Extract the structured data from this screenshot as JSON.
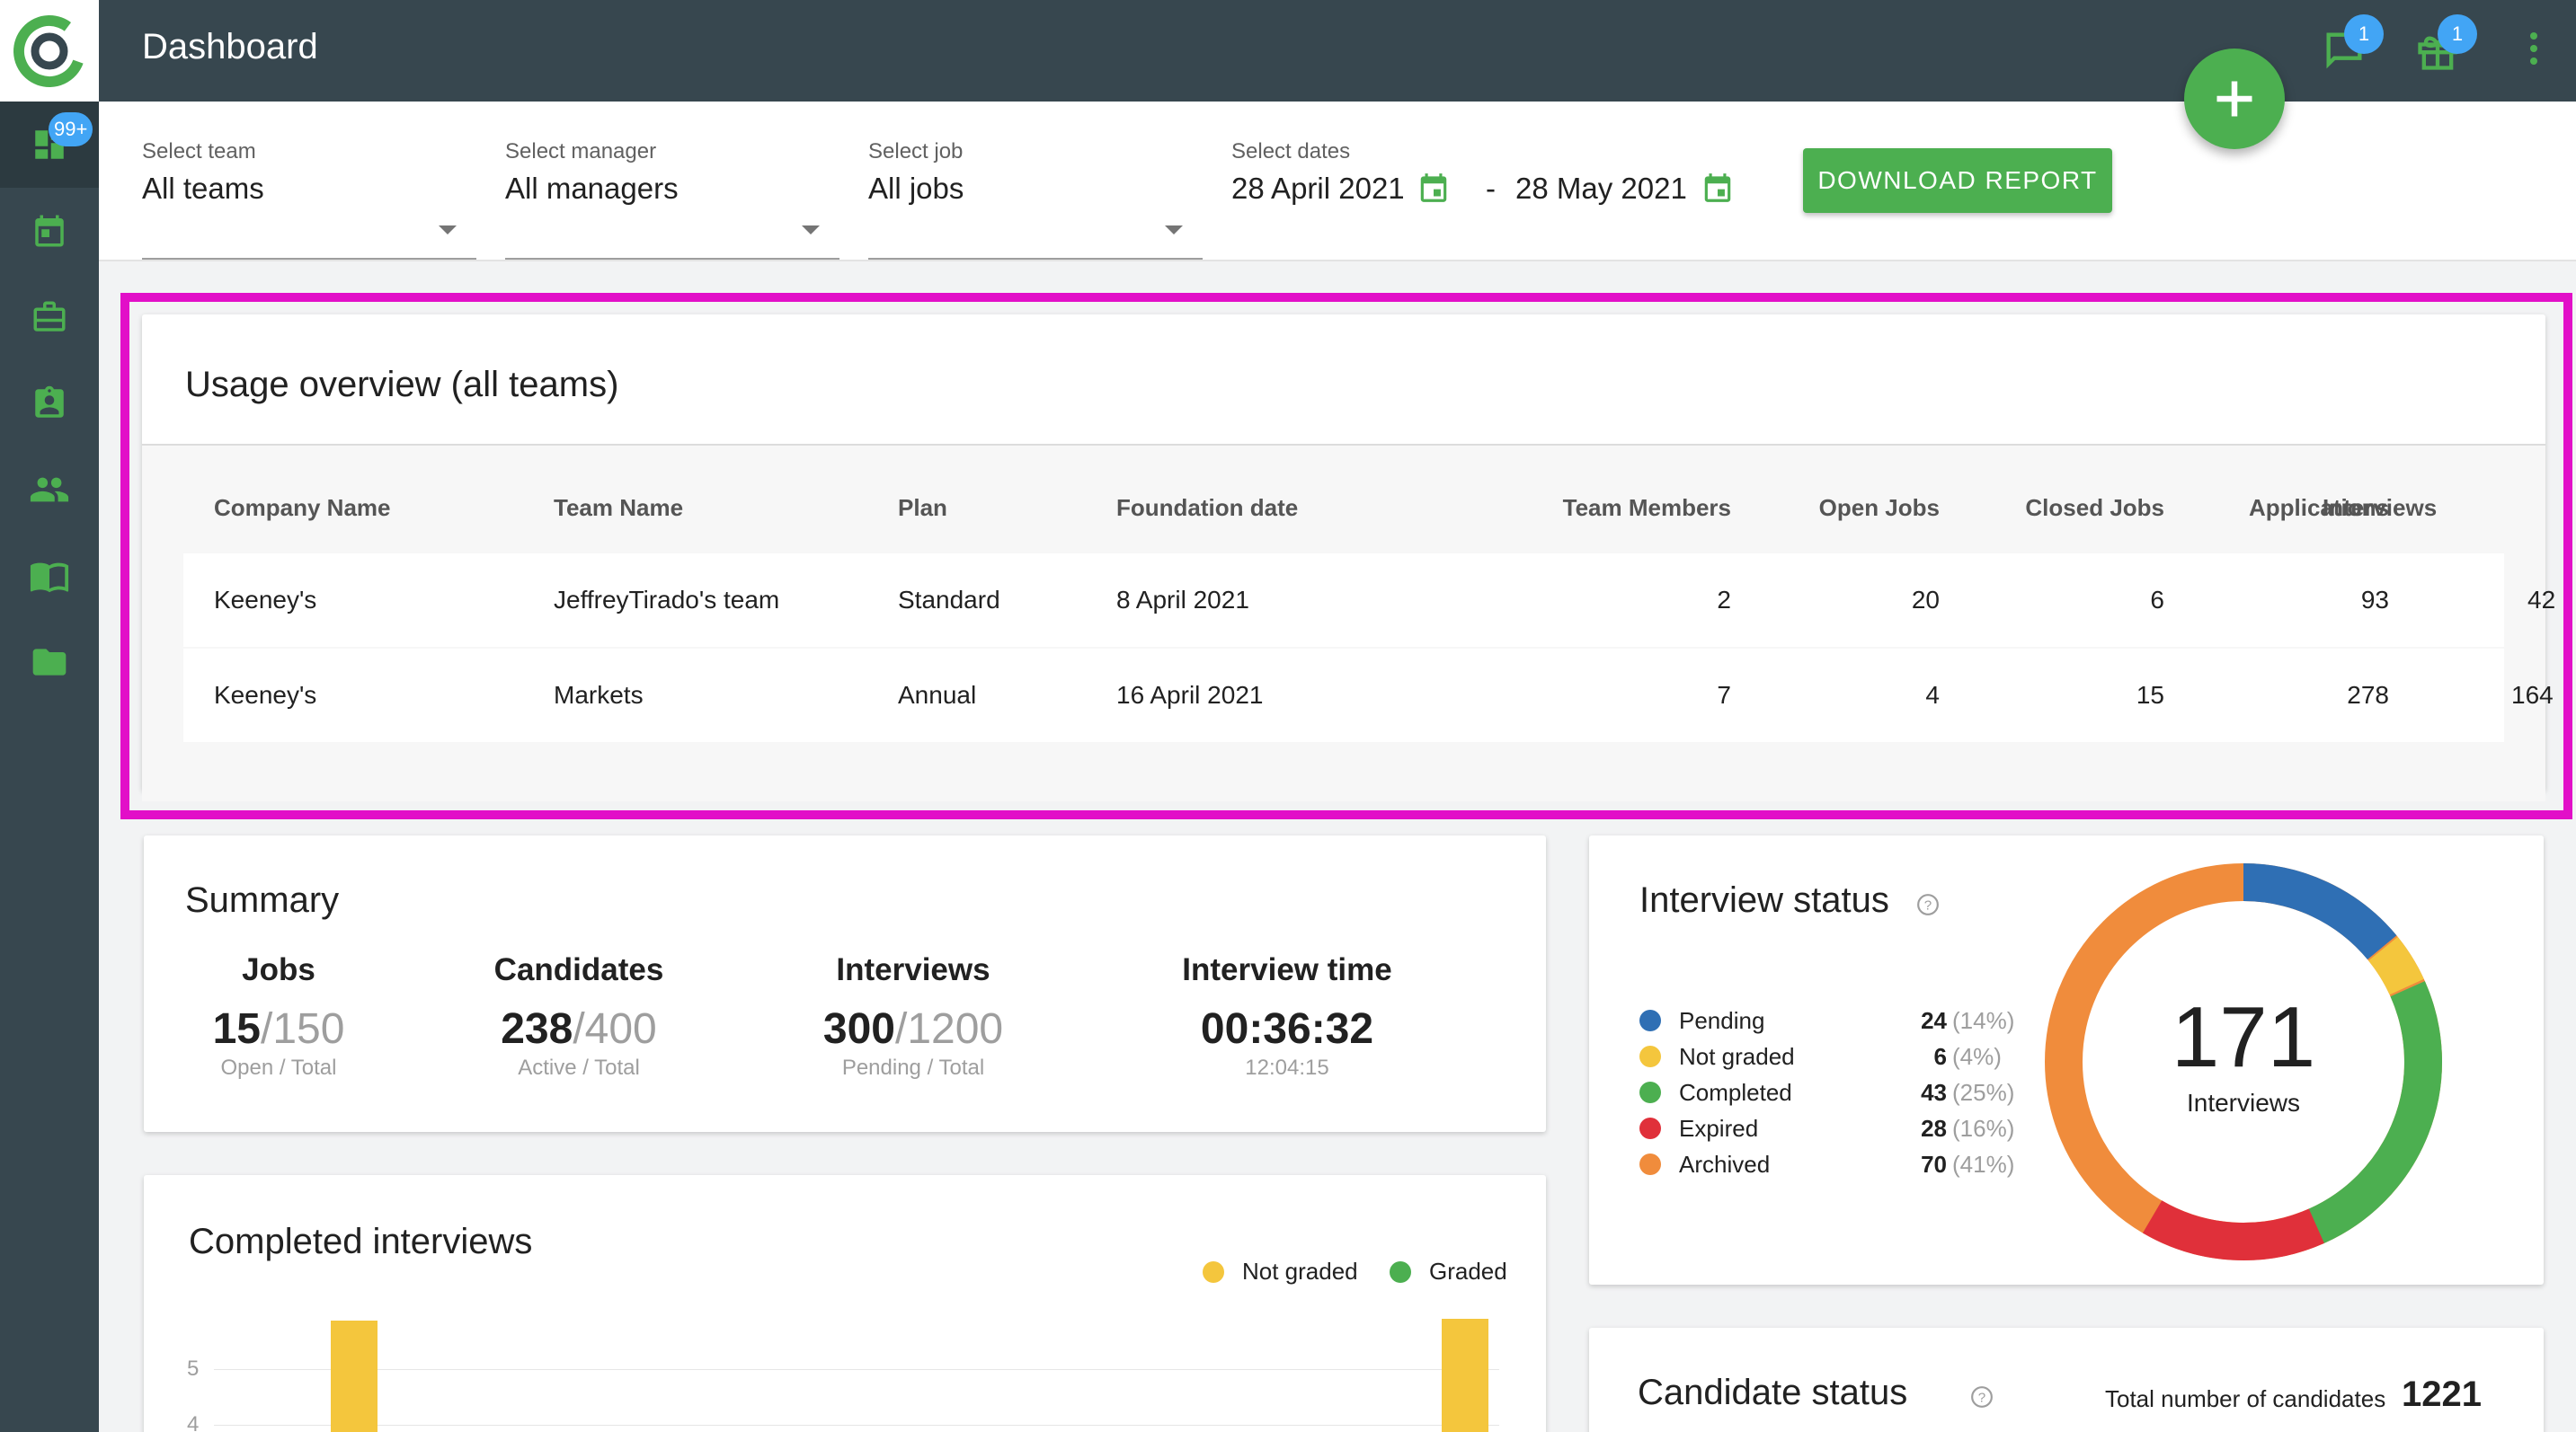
{
  "sidebar": {
    "badge": "99+",
    "items": [
      {
        "icon": "dashboard-icon"
      },
      {
        "icon": "calendar-icon"
      },
      {
        "icon": "briefcase-icon"
      },
      {
        "icon": "contact-badge-icon"
      },
      {
        "icon": "people-icon"
      },
      {
        "icon": "book-icon"
      },
      {
        "icon": "folder-icon"
      }
    ]
  },
  "header": {
    "title": "Dashboard",
    "messages_badge": "1",
    "gifts_badge": "1"
  },
  "filters": {
    "team": {
      "label": "Select team",
      "value": "All teams"
    },
    "manager": {
      "label": "Select manager",
      "value": "All managers"
    },
    "job": {
      "label": "Select job",
      "value": "All jobs"
    },
    "dates": {
      "label": "Select dates",
      "from": "28 April 2021",
      "separator": "-",
      "to": "28 May 2021"
    },
    "download_label": "DOWNLOAD REPORT"
  },
  "usage": {
    "title": "Usage overview (all teams)",
    "columns": [
      "Company Name",
      "Team Name",
      "Plan",
      "Foundation date",
      "Team Members",
      "Open Jobs",
      "Closed Jobs",
      "Applications",
      "Interviews"
    ],
    "rows": [
      [
        "Keeney's",
        "JeffreyTirado's team",
        "Standard",
        "8 April 2021",
        "2",
        "20",
        "6",
        "93",
        "42"
      ],
      [
        "Keeney's",
        "Markets",
        "Annual",
        "16 April 2021",
        "7",
        "4",
        "15",
        "278",
        "164"
      ]
    ]
  },
  "summary": {
    "title": "Summary",
    "jobs": {
      "label": "Jobs",
      "value": "15",
      "total": "/150",
      "sub": "Open / Total"
    },
    "candidates": {
      "label": "Candidates",
      "value": "238",
      "total": "/400",
      "sub": "Active / Total"
    },
    "interviews": {
      "label": "Interviews",
      "value": "300",
      "total": "/1200",
      "sub": "Pending / Total"
    },
    "time": {
      "label": "Interview time",
      "value": "00:36:32",
      "sub": "12:04:15"
    }
  },
  "interview_status": {
    "title": "Interview status",
    "total": "171",
    "total_label": "Interviews",
    "items": [
      {
        "label": "Pending",
        "value": "24",
        "pct": "(14%)",
        "color": "#2f6fb4"
      },
      {
        "label": "Not graded",
        "value": "6",
        "pct": "(4%)",
        "color": "#f4c63d"
      },
      {
        "label": "Completed",
        "value": "43",
        "pct": "(25%)",
        "color": "#4caf50"
      },
      {
        "label": "Expired",
        "value": "28",
        "pct": "(16%)",
        "color": "#e0303a"
      },
      {
        "label": "Archived",
        "value": "70",
        "pct": "(41%)",
        "color": "#f08c3c"
      }
    ]
  },
  "completed": {
    "title": "Completed interviews",
    "legend": [
      {
        "label": "Not graded",
        "color": "#f4c63d"
      },
      {
        "label": "Graded",
        "color": "#4caf50"
      }
    ],
    "ticks": [
      "5",
      "4"
    ]
  },
  "candidate_status": {
    "title": "Candidate status",
    "total_label": "Total number of candidates",
    "total": "1221"
  },
  "colors": {
    "primary": "#4caf50",
    "topbar": "#37474f",
    "highlight": "#e20fc8",
    "badge": "#42a5f5"
  }
}
